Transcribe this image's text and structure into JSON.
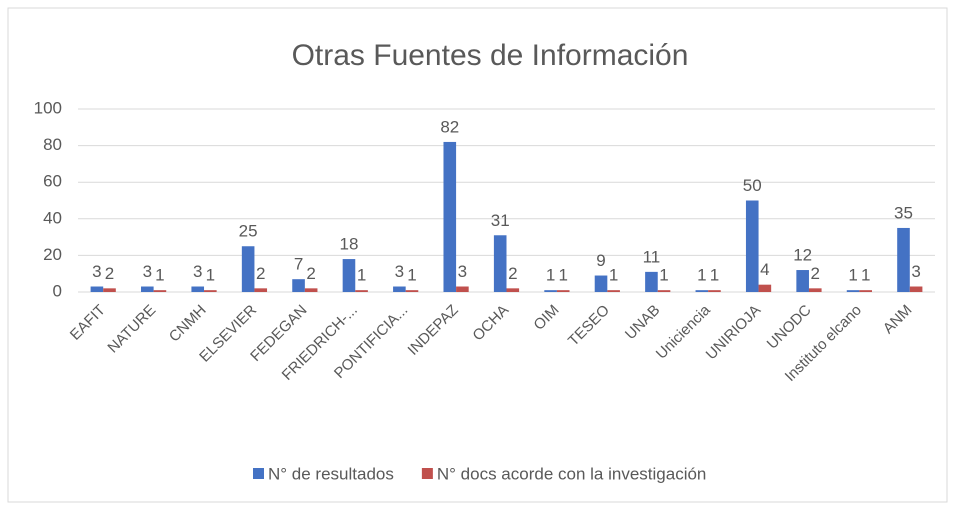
{
  "chart_data": {
    "type": "bar",
    "title": "Otras Fuentes de Información",
    "categories": [
      "EAFIT",
      "NATURE",
      "CNMH",
      "ELSEVIER",
      "FEDEGAN",
      "FRIEDRICH-...",
      "PONTIFICIA...",
      "INDEPAZ",
      "OCHA",
      "OIM",
      "TESEO",
      "UNAB",
      "Uniciencia",
      "UNIRIOJA",
      "UNODC",
      "Instituto elcano",
      "ANM"
    ],
    "series": [
      {
        "name": "N° de resultados",
        "color": "#4472c4",
        "values": [
          3,
          3,
          3,
          25,
          7,
          18,
          3,
          82,
          31,
          1,
          9,
          11,
          1,
          50,
          12,
          1,
          35
        ]
      },
      {
        "name": "N° docs acorde con la investigación",
        "color": "#c0504d",
        "values": [
          2,
          1,
          1,
          2,
          2,
          1,
          1,
          3,
          2,
          1,
          1,
          1,
          1,
          4,
          2,
          1,
          3
        ]
      }
    ],
    "ylim": [
      0,
      100
    ],
    "yticks": [
      0,
      20,
      40,
      60,
      80,
      100
    ],
    "grid": true,
    "legend": "bottom"
  }
}
